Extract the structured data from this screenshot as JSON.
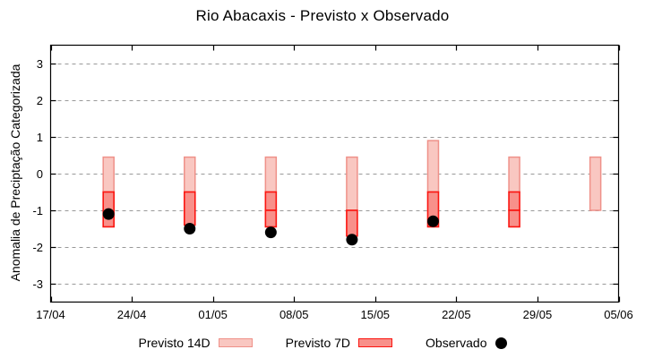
{
  "title": "Rio Abacaxis - Previsto x Observado",
  "y_axis": {
    "label": "Anomalia de Preciptação Categorizada",
    "tick_labels": [
      "3",
      "2",
      "1",
      "0",
      "-1",
      "-2",
      "-3"
    ]
  },
  "x_axis": {
    "tick_labels": [
      "17/04",
      "24/04",
      "01/05",
      "08/05",
      "15/05",
      "22/05",
      "29/05",
      "05/06"
    ]
  },
  "legend": {
    "previsto14": "Previsto 14D",
    "previsto7": "Previsto 7D",
    "observado": "Observado"
  },
  "colors": {
    "p14_fill": "#f9c7c1",
    "p14_stroke": "#ef9189",
    "p7_fill": "#f8908a",
    "p7_stroke": "#fb1510",
    "obs": "#000000",
    "grid": "#999999",
    "axis": "#000000"
  },
  "chart_data": {
    "type": "bar",
    "title": "Rio Abacaxis - Previsto x Observado",
    "xlabel": "",
    "ylabel": "Anomalia de Preciptação Categorizada",
    "ylim": [
      -3.5,
      3.5
    ],
    "yticks": [
      3,
      2,
      1,
      0,
      -1,
      -2,
      -3
    ],
    "grid": "horizontal-dashed",
    "legend_position": "below",
    "x_total_days": 49,
    "xticks": [
      {
        "label": "17/04",
        "day": 0
      },
      {
        "label": "24/04",
        "day": 7
      },
      {
        "label": "01/05",
        "day": 14
      },
      {
        "label": "08/05",
        "day": 21
      },
      {
        "label": "15/05",
        "day": 28
      },
      {
        "label": "22/05",
        "day": 35
      },
      {
        "label": "29/05",
        "day": 42
      },
      {
        "label": "05/06",
        "day": 49
      }
    ],
    "series_names": [
      "Previsto 14D",
      "Previsto 7D",
      "Observado"
    ],
    "groups": [
      {
        "date": "22/04",
        "day": 5,
        "previsto14": {
          "low": -0.5,
          "high": 0.45
        },
        "previsto7_segments": [
          [
            -1.45,
            -0.5
          ]
        ],
        "observado": -1.1
      },
      {
        "date": "29/04",
        "day": 12,
        "previsto14": {
          "low": -0.5,
          "high": 0.45
        },
        "previsto7_segments": [
          [
            -1.4,
            -0.5
          ]
        ],
        "observado": -1.5
      },
      {
        "date": "06/05",
        "day": 19,
        "previsto14": {
          "low": -0.5,
          "high": 0.45
        },
        "previsto7_segments": [
          [
            -1.0,
            -0.5
          ],
          [
            -1.45,
            -1.0
          ]
        ],
        "observado": -1.6
      },
      {
        "date": "13/05",
        "day": 26,
        "previsto14": {
          "low": -1.0,
          "high": 0.45
        },
        "previsto7_segments": [
          [
            -1.7,
            -1.0
          ]
        ],
        "observado": -1.8
      },
      {
        "date": "20/05",
        "day": 33,
        "previsto14": {
          "low": -0.5,
          "high": 0.9
        },
        "previsto7_segments": [
          [
            -1.45,
            -0.5
          ]
        ],
        "observado": -1.3
      },
      {
        "date": "27/05",
        "day": 40,
        "previsto14": {
          "low": -0.5,
          "high": 0.45
        },
        "previsto7_segments": [
          [
            -1.0,
            -0.5
          ],
          [
            -1.45,
            -1.0
          ]
        ],
        "observado": null
      },
      {
        "date": "03/06",
        "day": 47,
        "previsto14": {
          "low": -1.0,
          "high": 0.45
        },
        "previsto7_segments": [],
        "observado": null
      }
    ]
  }
}
